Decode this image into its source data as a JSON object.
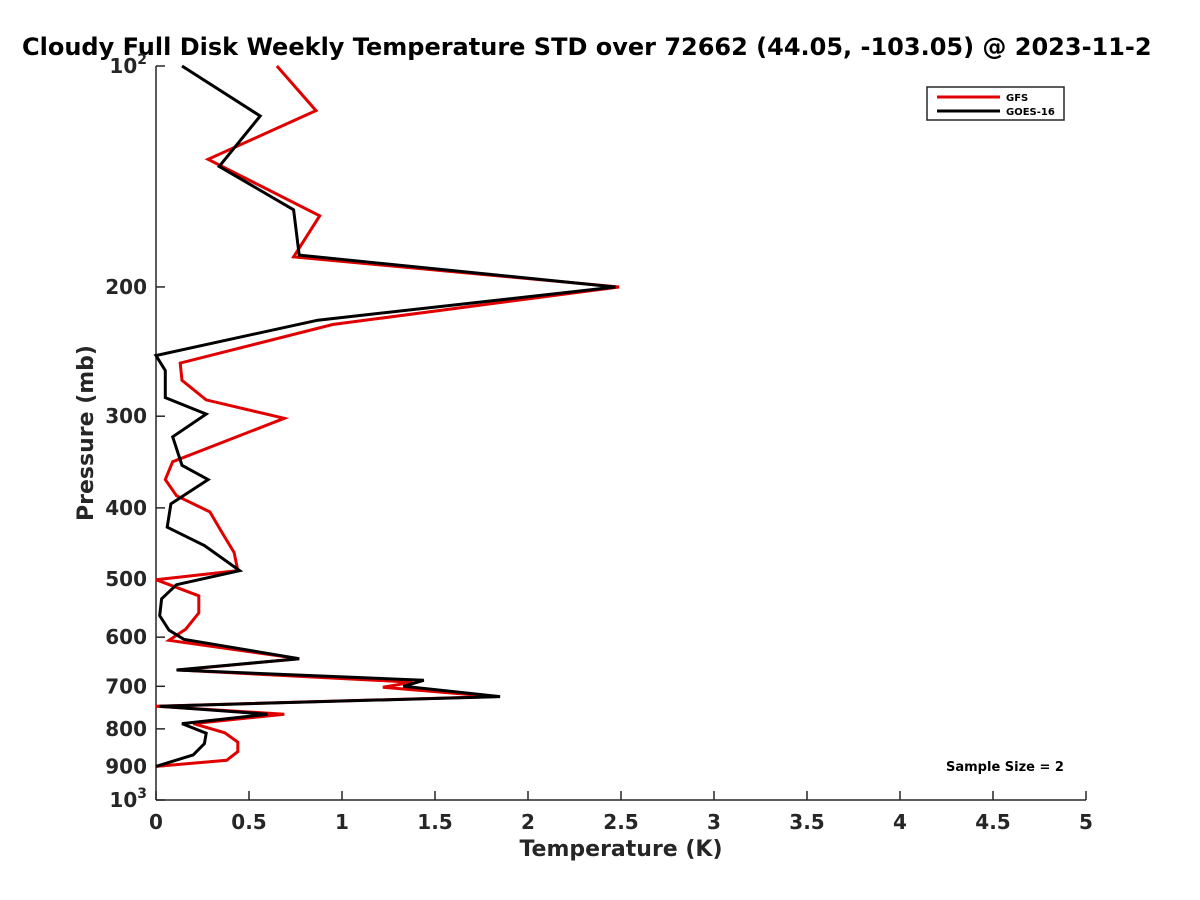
{
  "chart_data": {
    "type": "line",
    "title": "Cloudy Full Disk Weekly Temperature STD over 72662 (44.05, -103.05) @ 2023-11-2",
    "xlabel": "Temperature (K)",
    "ylabel": "Pressure (mb)",
    "xlim": [
      0,
      5
    ],
    "ylim": [
      100,
      1000
    ],
    "yscale": "log",
    "y_reversed": true,
    "grid": false,
    "legend_position": "top-right",
    "xticks": [
      0,
      0.5,
      1,
      1.5,
      2,
      2.5,
      3,
      3.5,
      4,
      4.5,
      5
    ],
    "xtick_labels": [
      "0",
      "0.5",
      "1",
      "1.5",
      "2",
      "2.5",
      "3",
      "3.5",
      "4",
      "4.5",
      "5"
    ],
    "yticks": [
      {
        "value": 100,
        "label": "10",
        "sup": "2"
      },
      {
        "value": 200,
        "label": "200",
        "sup": ""
      },
      {
        "value": 300,
        "label": "300",
        "sup": ""
      },
      {
        "value": 400,
        "label": "400",
        "sup": ""
      },
      {
        "value": 500,
        "label": "500",
        "sup": ""
      },
      {
        "value": 600,
        "label": "600",
        "sup": ""
      },
      {
        "value": 700,
        "label": "700",
        "sup": ""
      },
      {
        "value": 800,
        "label": "800",
        "sup": ""
      },
      {
        "value": 900,
        "label": "900",
        "sup": ""
      },
      {
        "value": 1000,
        "label": "10",
        "sup": "3"
      }
    ],
    "annotation": "Sample Size = 2",
    "series": [
      {
        "name": "GFS",
        "color": "#e00000",
        "points": [
          [
            0.65,
            100
          ],
          [
            0.86,
            115
          ],
          [
            0.28,
            134
          ],
          [
            0.88,
            160
          ],
          [
            0.74,
            182
          ],
          [
            2.49,
            200
          ],
          [
            0.95,
            225
          ],
          [
            0.13,
            254
          ],
          [
            0.14,
            268
          ],
          [
            0.27,
            285
          ],
          [
            0.69,
            302
          ],
          [
            0.09,
            346
          ],
          [
            0.05,
            366
          ],
          [
            0.11,
            385
          ],
          [
            0.29,
            405
          ],
          [
            0.35,
            430
          ],
          [
            0.42,
            460
          ],
          [
            0.44,
            487
          ],
          [
            0.0,
            501
          ],
          [
            0.23,
            527
          ],
          [
            0.23,
            556
          ],
          [
            0.16,
            585
          ],
          [
            0.07,
            606
          ],
          [
            0.77,
            642
          ],
          [
            0.12,
            665
          ],
          [
            1.38,
            691
          ],
          [
            1.22,
            702
          ],
          [
            1.82,
            723
          ],
          [
            0.0,
            745
          ],
          [
            0.69,
            764
          ],
          [
            0.2,
            787
          ],
          [
            0.37,
            810
          ],
          [
            0.44,
            834
          ],
          [
            0.44,
            859
          ],
          [
            0.38,
            883
          ],
          [
            0.0,
            900
          ]
        ]
      },
      {
        "name": "GOES-16",
        "color": "#000000",
        "points": [
          [
            0.14,
            100
          ],
          [
            0.56,
            117
          ],
          [
            0.34,
            137
          ],
          [
            0.74,
            157
          ],
          [
            0.77,
            181
          ],
          [
            2.47,
            200
          ],
          [
            0.87,
            222
          ],
          [
            0.0,
            248
          ],
          [
            0.05,
            260
          ],
          [
            0.05,
            283
          ],
          [
            0.27,
            298
          ],
          [
            0.09,
            320
          ],
          [
            0.14,
            350
          ],
          [
            0.28,
            366
          ],
          [
            0.08,
            395
          ],
          [
            0.06,
            425
          ],
          [
            0.26,
            450
          ],
          [
            0.45,
            487
          ],
          [
            0.11,
            509
          ],
          [
            0.03,
            532
          ],
          [
            0.02,
            561
          ],
          [
            0.07,
            587
          ],
          [
            0.15,
            604
          ],
          [
            0.77,
            642
          ],
          [
            0.11,
            665
          ],
          [
            1.44,
            687
          ],
          [
            1.33,
            700
          ],
          [
            1.85,
            723
          ],
          [
            0.02,
            745
          ],
          [
            0.6,
            764
          ],
          [
            0.14,
            787
          ],
          [
            0.27,
            811
          ],
          [
            0.26,
            838
          ],
          [
            0.2,
            868
          ],
          [
            0.0,
            900
          ]
        ]
      }
    ]
  }
}
